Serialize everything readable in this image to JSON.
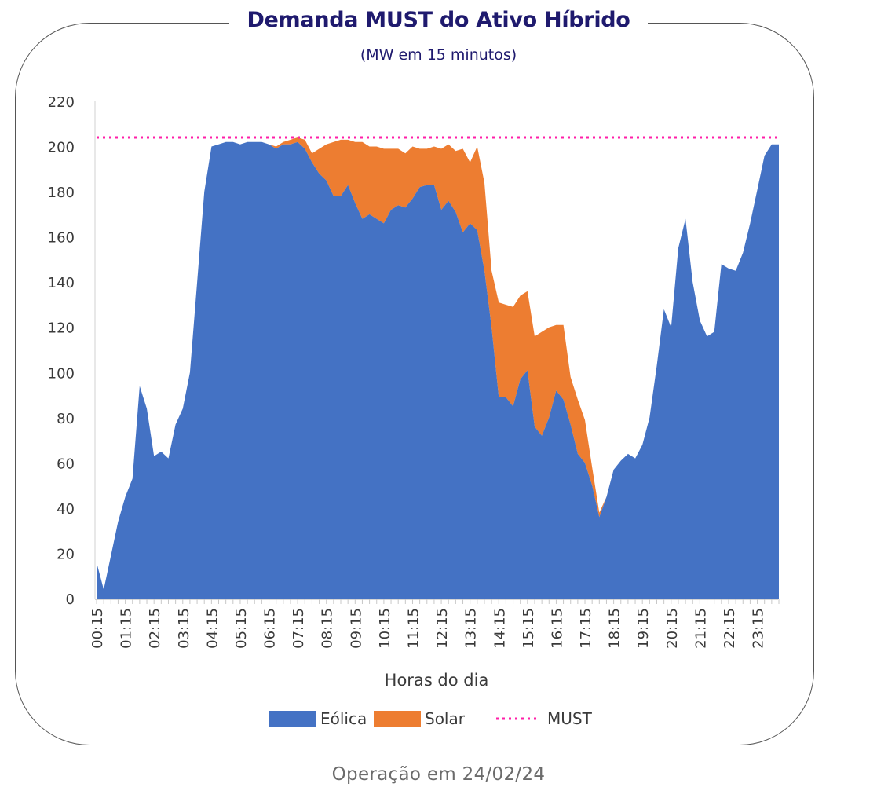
{
  "chart_data": {
    "type": "area",
    "title": "Demanda MUST do Ativo Híbrido",
    "subtitle": "(MW em 15 minutos)",
    "xlabel": "Horas do dia",
    "ylabel": "",
    "ylim": [
      0,
      220
    ],
    "yticks": [
      0,
      20,
      40,
      60,
      80,
      100,
      120,
      140,
      160,
      180,
      200,
      220
    ],
    "x_tick_labels": [
      "00:15",
      "01:15",
      "02:15",
      "03:15",
      "04:15",
      "05:15",
      "06:15",
      "07:15",
      "08:15",
      "09:15",
      "10:15",
      "11:15",
      "12:15",
      "13:15",
      "14:15",
      "15:15",
      "16:15",
      "17:15",
      "18:15",
      "19:15",
      "20:15",
      "21:15",
      "22:15",
      "23:15"
    ],
    "points_per_hour": 4,
    "stacked": true,
    "legend_position": "bottom",
    "series": [
      {
        "name": "Eólica",
        "color": "#4472c4",
        "values": [
          16,
          4,
          19,
          34,
          45,
          53,
          94,
          84,
          63,
          65,
          62,
          77,
          84,
          100,
          140,
          180,
          200,
          201,
          202,
          202,
          201,
          202,
          202,
          202,
          201,
          199,
          201,
          201,
          202,
          199,
          193,
          188,
          185,
          178,
          178,
          183,
          175,
          168,
          170,
          168,
          166,
          172,
          174,
          173,
          177,
          182,
          183,
          183,
          172,
          176,
          171,
          162,
          166,
          163,
          145,
          120,
          89,
          89,
          85,
          97,
          101,
          76,
          72,
          80,
          92,
          88,
          77,
          64,
          60,
          50,
          36,
          45,
          57,
          61,
          64,
          62,
          68,
          80,
          103,
          128,
          120,
          155,
          168,
          140,
          123,
          116,
          118,
          148,
          146,
          145,
          153,
          166,
          181,
          196,
          201,
          201
        ]
      },
      {
        "name": "Solar",
        "color": "#ed7d31",
        "values": [
          0,
          0,
          0,
          0,
          0,
          0,
          0,
          0,
          0,
          0,
          0,
          0,
          0,
          0,
          0,
          0,
          0,
          0,
          0,
          0,
          0,
          0,
          0,
          0,
          0,
          1,
          1,
          2,
          2,
          4,
          4,
          11,
          16,
          24,
          25,
          20,
          27,
          34,
          30,
          32,
          33,
          27,
          25,
          24,
          23,
          17,
          16,
          17,
          27,
          25,
          27,
          37,
          27,
          37,
          39,
          25,
          42,
          41,
          44,
          37,
          35,
          40,
          46,
          40,
          29,
          33,
          21,
          24,
          19,
          8,
          2,
          0,
          0,
          0,
          0,
          0,
          0,
          0,
          0,
          0,
          0,
          0,
          0,
          0,
          0,
          0,
          0,
          0,
          0,
          0,
          0,
          0,
          0,
          0,
          0,
          0
        ]
      },
      {
        "name": "MUST",
        "color": "#ff1fa8",
        "style": "dotted",
        "constant": 204
      }
    ]
  },
  "caption": "Operação em 24/02/24"
}
